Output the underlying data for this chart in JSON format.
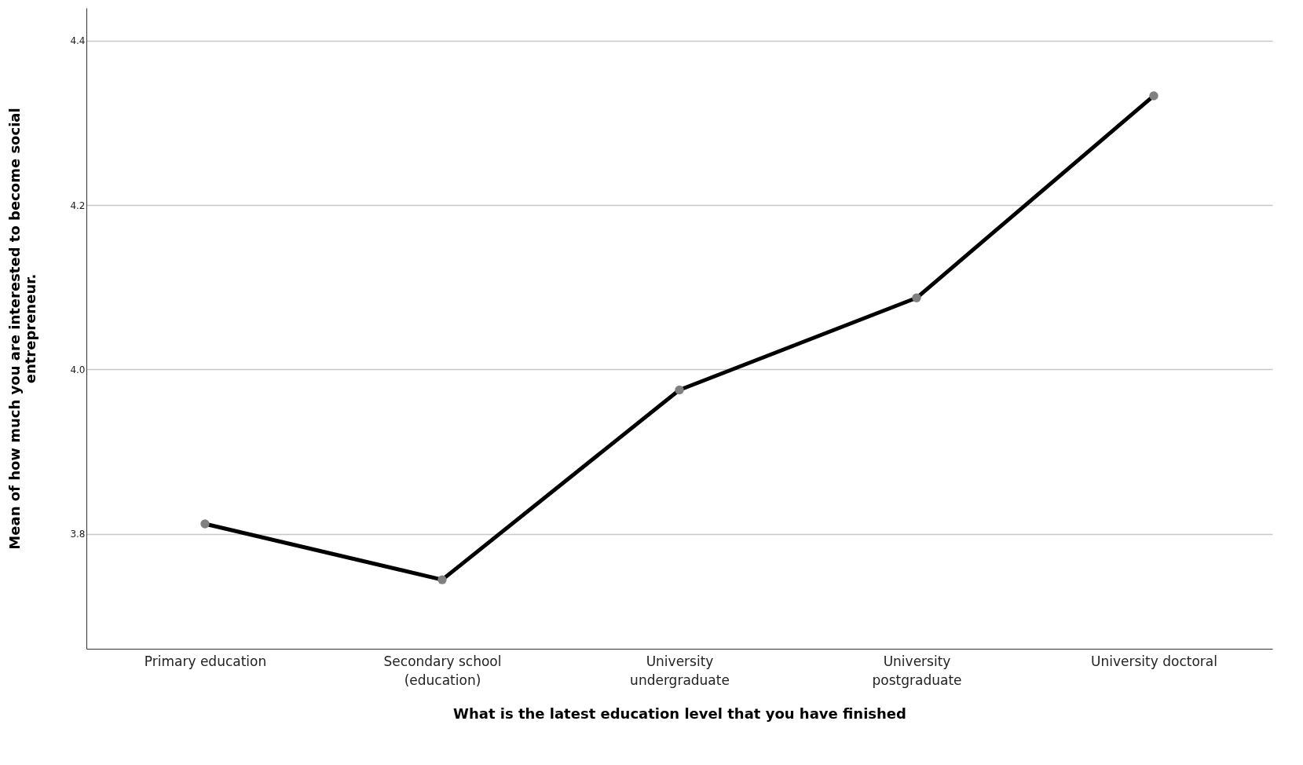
{
  "chart_data": {
    "type": "line",
    "xlabel": "What is the latest education level that you have finished",
    "ylabel": "Mean of how much you are interested to become social entrepreneur.",
    "categories": [
      "Primary education",
      "Secondary school (education)",
      "University undergraduate",
      "University postgraduate",
      "University doctoral"
    ],
    "series": [
      {
        "color": "#000000",
        "values": [
          3.812,
          3.744,
          3.975,
          4.087,
          4.333
        ]
      }
    ],
    "ylim": [
      3.66,
      4.44
    ],
    "yticks": [
      {
        "value": 3.8,
        "label": "3.8"
      },
      {
        "value": 4.0,
        "label": "4.0"
      },
      {
        "value": 4.2,
        "label": "4.2"
      },
      {
        "value": 4.4,
        "label": "4.4"
      }
    ],
    "grid": "y",
    "marker": "circle",
    "line_style": "solid"
  }
}
